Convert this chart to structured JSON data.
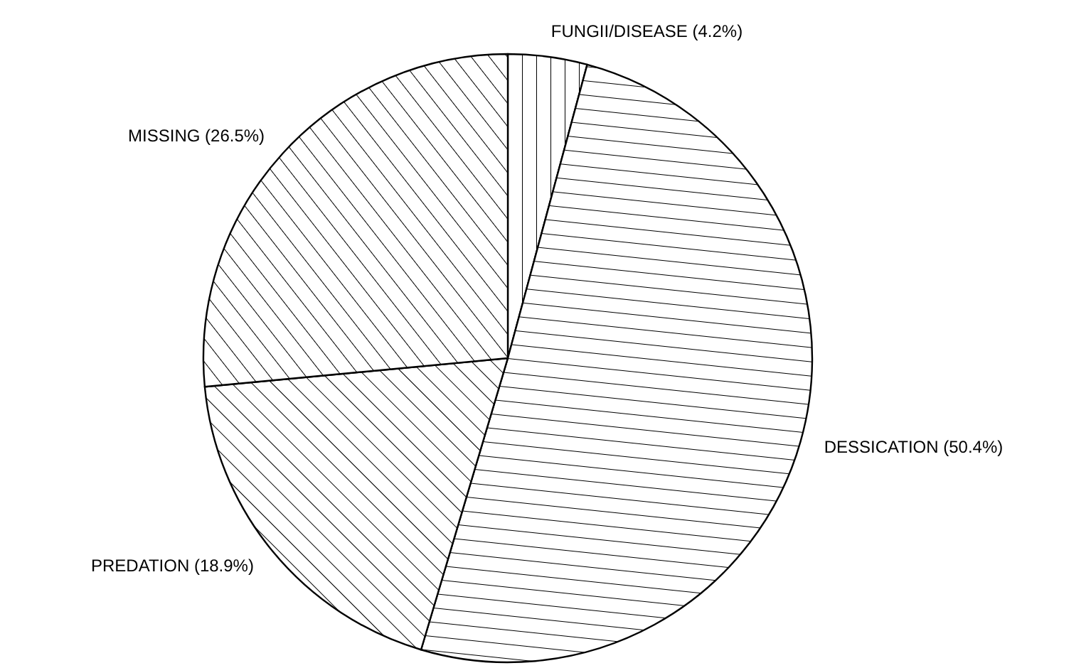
{
  "chart_data": {
    "type": "pie",
    "categories": [
      "FUNGII/DISEASE",
      "DESSICATION",
      "PREDATION",
      "MISSING"
    ],
    "values": [
      4.2,
      50.4,
      18.9,
      26.5
    ],
    "value_labels": [
      "(4.2%)",
      "(50.4%)",
      "(18.9%)",
      "(26.5%)"
    ],
    "colors": [
      "#000000",
      "#000000",
      "#000000",
      "#000000"
    ]
  }
}
